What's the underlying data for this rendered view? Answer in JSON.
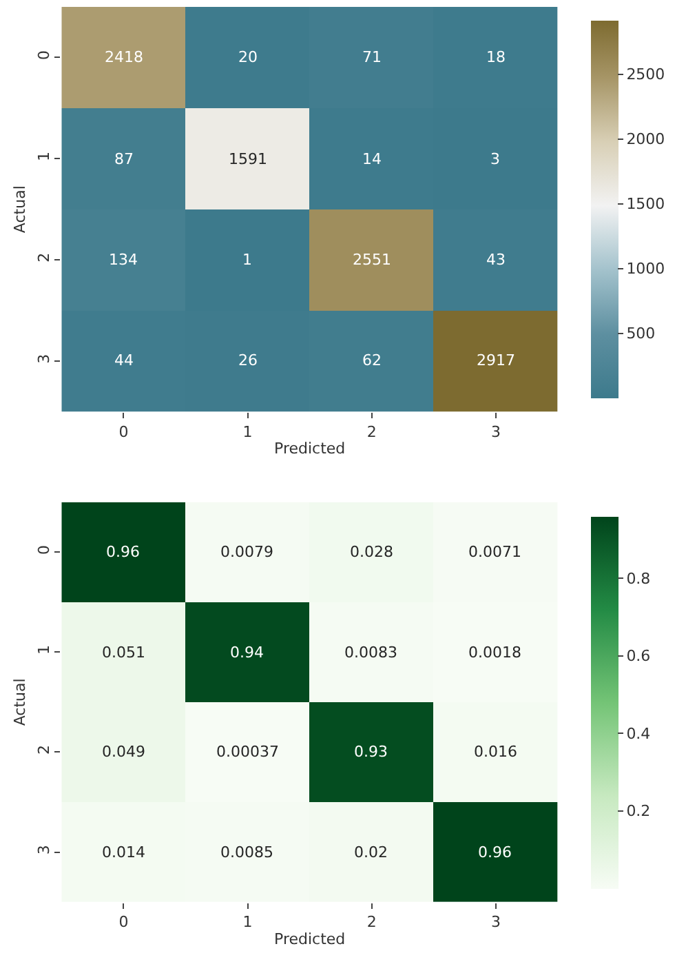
{
  "chart_data": [
    {
      "type": "heatmap",
      "xlabel": "Predicted",
      "ylabel": "Actual",
      "categories": [
        "0",
        "1",
        "2",
        "3"
      ],
      "y_categories": [
        "0",
        "1",
        "2",
        "3"
      ],
      "cells": [
        [
          2418,
          20,
          71,
          18
        ],
        [
          87,
          1591,
          14,
          3
        ],
        [
          134,
          1,
          2551,
          43
        ],
        [
          44,
          26,
          62,
          2917
        ]
      ],
      "clim": [
        1,
        2917
      ],
      "cticks": [
        500,
        1000,
        1500,
        2000,
        2500
      ],
      "data_labels": true
    },
    {
      "type": "heatmap",
      "xlabel": "Predicted",
      "ylabel": "Actual",
      "categories": [
        "0",
        "1",
        "2",
        "3"
      ],
      "y_categories": [
        "0",
        "1",
        "2",
        "3"
      ],
      "cells": [
        [
          0.96,
          0.0079,
          0.028,
          0.0071
        ],
        [
          0.051,
          0.94,
          0.0083,
          0.0018
        ],
        [
          0.049,
          0.00037,
          0.93,
          0.016
        ],
        [
          0.014,
          0.0085,
          0.02,
          0.96
        ]
      ],
      "clim": [
        0.00037,
        0.96
      ],
      "cticks": [
        0.2,
        0.4,
        0.6,
        0.8
      ],
      "data_labels": true
    }
  ]
}
